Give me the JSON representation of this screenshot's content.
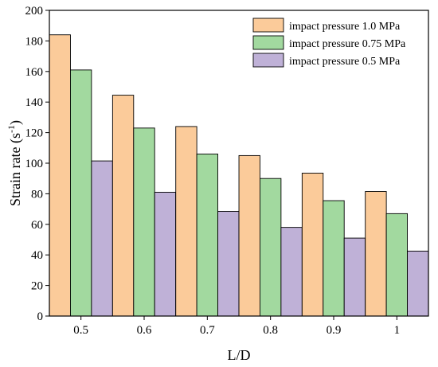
{
  "chart_data": {
    "type": "bar",
    "title": "",
    "xlabel": "L/D",
    "ylabel": "Strain rate (s",
    "ylabel_sup": "-1",
    "ylabel_close": ")",
    "categories": [
      "0.5",
      "0.6",
      "0.7",
      "0.8",
      "0.9",
      "1"
    ],
    "ylim": [
      0,
      200
    ],
    "yticks": [
      "0",
      "20",
      "40",
      "60",
      "80",
      "100",
      "120",
      "140",
      "160",
      "180",
      "200"
    ],
    "grid": false,
    "legend_position": "top-right",
    "series": [
      {
        "name": "impact pressure 1.0 MPa",
        "color": "#FBCB9A",
        "values": [
          184,
          144.5,
          124,
          105,
          93.5,
          81.5
        ]
      },
      {
        "name": "impact pressure 0.75 MPa",
        "color": "#A2D99F",
        "values": [
          161,
          123,
          106,
          90,
          75.5,
          67
        ]
      },
      {
        "name": "impact pressure 0.5 MPa",
        "color": "#BFB1D7",
        "values": [
          101.5,
          81,
          68.5,
          58,
          51,
          42.5
        ]
      }
    ]
  }
}
